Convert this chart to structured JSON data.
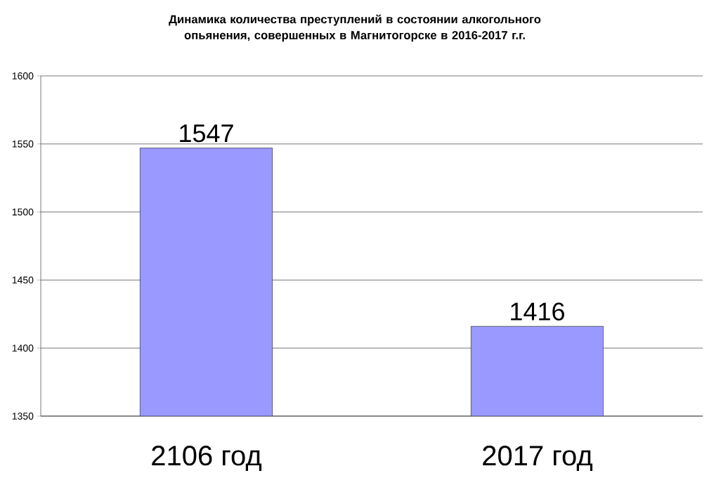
{
  "chart_data": {
    "type": "bar",
    "title": "Динамика количества преступлений в состоянии алкогольного опьянения, совершенных в Магнитогорске в 2016-2017 г.г.",
    "categories": [
      "2106 год",
      "2017 год"
    ],
    "values": [
      1547,
      1416
    ],
    "color": "#9999ff",
    "ylim": [
      1350,
      1600
    ],
    "yticks": [
      1350,
      1400,
      1450,
      1500,
      1550,
      1600
    ],
    "grid": "y",
    "data_labels": true
  }
}
